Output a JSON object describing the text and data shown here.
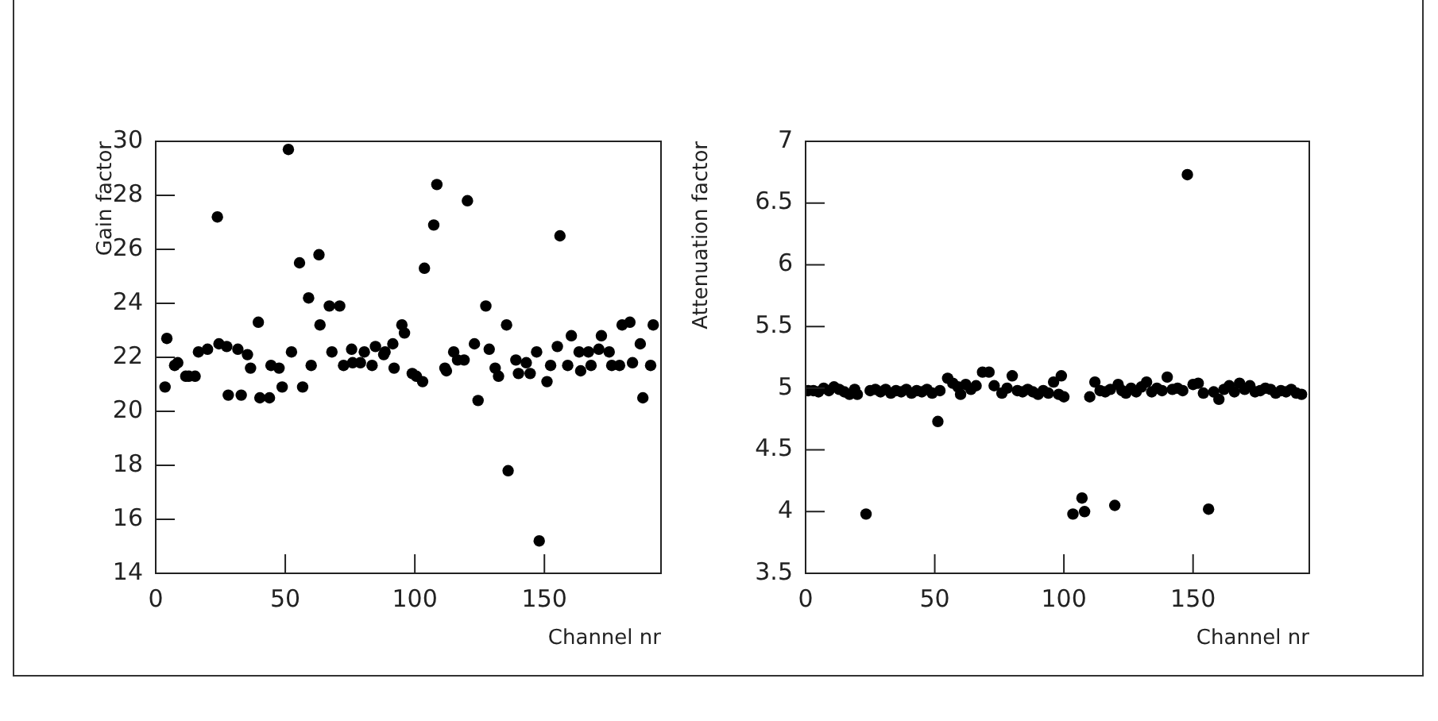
{
  "chart_data": [
    {
      "type": "scatter",
      "xlabel": "Channel nr",
      "ylabel": "Gain factor",
      "color": "#000000",
      "marker": "circle",
      "xlim": [
        0,
        195
      ],
      "ylim": [
        14,
        30
      ],
      "xticks": [
        0,
        50,
        100,
        150
      ],
      "yticks": [
        14,
        16,
        18,
        20,
        22,
        24,
        26,
        28,
        30
      ],
      "x": [
        3.6,
        4.3,
        7.3,
        8.5,
        11.6,
        12.8,
        15.2,
        16.5,
        20,
        23.8,
        24.4,
        27.4,
        28,
        31.7,
        33,
        35.4,
        36.6,
        39.6,
        40.2,
        43.9,
        44.5,
        47.6,
        48.8,
        51.2,
        52.4,
        55.5,
        56.7,
        59,
        60,
        63,
        63.4,
        67,
        68,
        71,
        72.5,
        75.6,
        76,
        79,
        80.5,
        83.5,
        84.8,
        88,
        88.5,
        91.5,
        92,
        95,
        96,
        99,
        100.6,
        103,
        103.7,
        107.3,
        108.5,
        111.6,
        112.2,
        115,
        116.5,
        119,
        120.3,
        123,
        124.4,
        127.4,
        128.7,
        131,
        132.3,
        135.4,
        136,
        139,
        140,
        143,
        144.5,
        147,
        148,
        151,
        152.4,
        155,
        156,
        159,
        160.4,
        163.4,
        164,
        167,
        168,
        171,
        172,
        175,
        176,
        179,
        180,
        183,
        184,
        187,
        188,
        191,
        192
      ],
      "values": [
        20.9,
        22.7,
        21.7,
        21.8,
        21.3,
        21.3,
        21.3,
        22.2,
        22.3,
        27.2,
        22.5,
        22.4,
        20.6,
        22.3,
        20.6,
        22.1,
        21.6,
        23.3,
        20.5,
        20.5,
        21.7,
        21.6,
        20.9,
        29.7,
        22.2,
        25.5,
        20.9,
        24.2,
        21.7,
        25.8,
        23.2,
        23.9,
        22.2,
        23.9,
        21.7,
        22.3,
        21.8,
        21.8,
        22.2,
        21.7,
        22.4,
        22.1,
        22.2,
        22.5,
        21.6,
        23.2,
        22.9,
        21.4,
        21.3,
        21.1,
        25.3,
        26.9,
        28.4,
        21.6,
        21.5,
        22.2,
        21.9,
        21.9,
        27.8,
        22.5,
        20.4,
        23.9,
        22.3,
        21.6,
        21.3,
        23.2,
        17.8,
        21.9,
        21.4,
        21.8,
        21.4,
        22.2,
        15.2,
        21.1,
        21.7,
        22.4,
        26.5,
        21.7,
        22.8,
        22.2,
        21.5,
        22.2,
        21.7,
        22.3,
        22.8,
        22.2,
        21.7,
        21.7,
        23.2,
        23.3,
        21.8,
        22.5,
        20.5,
        21.7,
        23.2
      ]
    },
    {
      "type": "scatter",
      "xlabel": "Channel nr",
      "ylabel": "Attenuation factor",
      "color": "#000000",
      "marker": "circle",
      "xlim": [
        0,
        195
      ],
      "ylim": [
        3.5,
        7
      ],
      "xticks": [
        0,
        50,
        100,
        150
      ],
      "yticks": [
        3.5,
        4,
        4.5,
        5,
        5.5,
        6,
        6.5,
        7
      ],
      "x": [
        1,
        3,
        5,
        7,
        9,
        11,
        13,
        15,
        17,
        19,
        20,
        23.4,
        25,
        27,
        29,
        31,
        33,
        35,
        37,
        39,
        41,
        43,
        45,
        47,
        49,
        51.2,
        52,
        55,
        57,
        59,
        60,
        62,
        64,
        66,
        68.5,
        71,
        73,
        76,
        78,
        80,
        82,
        84,
        86,
        88,
        90,
        92,
        94,
        96,
        98,
        99,
        100,
        103.5,
        107,
        108,
        110,
        112,
        114,
        116,
        118,
        119.7,
        121,
        122.5,
        124,
        126,
        128,
        130,
        132,
        134,
        136,
        138,
        140,
        142,
        144,
        146,
        147.8,
        150,
        152,
        154,
        156,
        158,
        160,
        162,
        164,
        166,
        168,
        170,
        172,
        174,
        176,
        178,
        180,
        182,
        184,
        186,
        188,
        190,
        192
      ],
      "values": [
        4.98,
        4.98,
        4.97,
        5,
        4.98,
        5.01,
        4.99,
        4.97,
        4.95,
        4.99,
        4.95,
        3.98,
        4.98,
        4.99,
        4.97,
        4.99,
        4.96,
        4.98,
        4.97,
        4.99,
        4.96,
        4.98,
        4.97,
        4.99,
        4.96,
        4.73,
        4.98,
        5.08,
        5.04,
        5.01,
        4.95,
        5.03,
        4.99,
        5.02,
        5.13,
        5.13,
        5.02,
        4.96,
        5.0,
        5.1,
        4.98,
        4.97,
        4.99,
        4.97,
        4.95,
        4.98,
        4.96,
        5.05,
        4.95,
        5.1,
        4.93,
        3.98,
        4.11,
        4.0,
        4.93,
        5.05,
        4.98,
        4.97,
        4.99,
        4.05,
        5.03,
        4.98,
        4.96,
        5.0,
        4.97,
        5.01,
        5.05,
        4.97,
        5.0,
        4.98,
        5.09,
        4.99,
        5.0,
        4.98,
        6.73,
        5.03,
        5.04,
        4.96,
        4.02,
        4.97,
        4.91,
        4.99,
        5.02,
        4.97,
        5.04,
        4.99,
        5.02,
        4.97,
        4.98,
        5.0,
        4.99,
        4.96,
        4.98,
        4.97,
        4.99,
        4.96,
        4.95
      ]
    }
  ]
}
